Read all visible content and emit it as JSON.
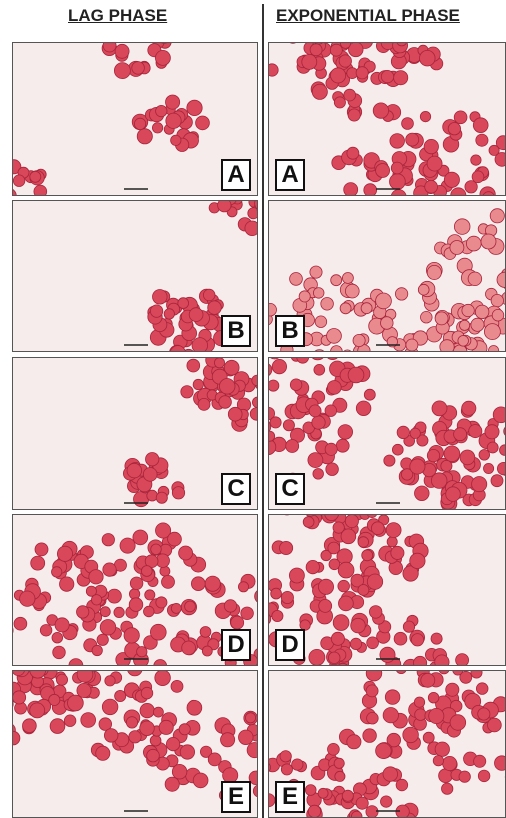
{
  "header": {
    "lag": "LAG PHASE",
    "exponential": "EXPONENTIAL PHASE"
  },
  "lag_panels": [
    {
      "label": "A"
    },
    {
      "label": "B"
    },
    {
      "label": "C"
    },
    {
      "label": "D"
    },
    {
      "label": "E"
    }
  ],
  "exponential_panels": [
    {
      "label": "A"
    },
    {
      "label": "B"
    },
    {
      "label": "C"
    },
    {
      "label": "D"
    },
    {
      "label": "E"
    }
  ]
}
